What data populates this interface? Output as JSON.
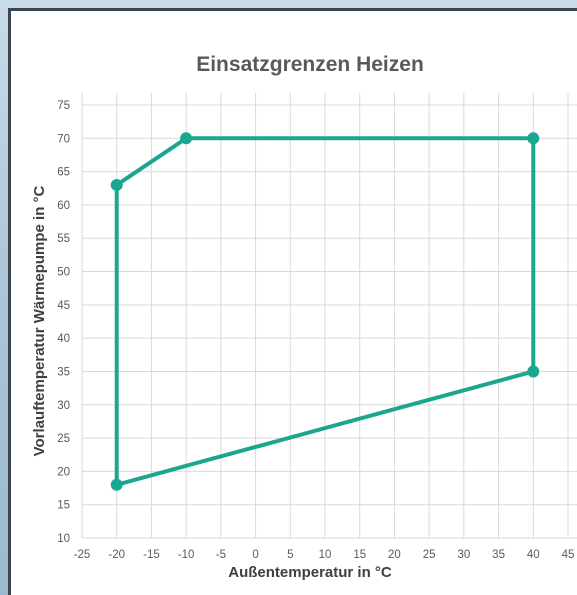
{
  "chart_data": {
    "type": "line",
    "title": "Einsatzgrenzen Heizen",
    "xlabel": "Außentemperatur in °C",
    "ylabel": "Vorlauftemperatur Wärmepumpe in °C",
    "xlim": [
      -25,
      45
    ],
    "ylim": [
      10,
      75
    ],
    "xticks": [
      -25,
      -20,
      -15,
      -10,
      -5,
      0,
      5,
      10,
      15,
      20,
      25,
      30,
      35,
      40,
      45
    ],
    "yticks": [
      10,
      15,
      20,
      25,
      30,
      35,
      40,
      45,
      50,
      55,
      60,
      65,
      70,
      75
    ],
    "grid": true,
    "legend": "none",
    "series": [
      {
        "color": "#1aa68f",
        "closed": true,
        "points": [
          {
            "x": -20,
            "y": 18
          },
          {
            "x": -20,
            "y": 63
          },
          {
            "x": -10,
            "y": 70
          },
          {
            "x": 40,
            "y": 70
          },
          {
            "x": 40,
            "y": 35
          },
          {
            "x": -20,
            "y": 18
          }
        ]
      }
    ]
  },
  "colors": {
    "series": "#1aa68f",
    "grid": "#d9d9d9",
    "frame": "#3a4650"
  }
}
